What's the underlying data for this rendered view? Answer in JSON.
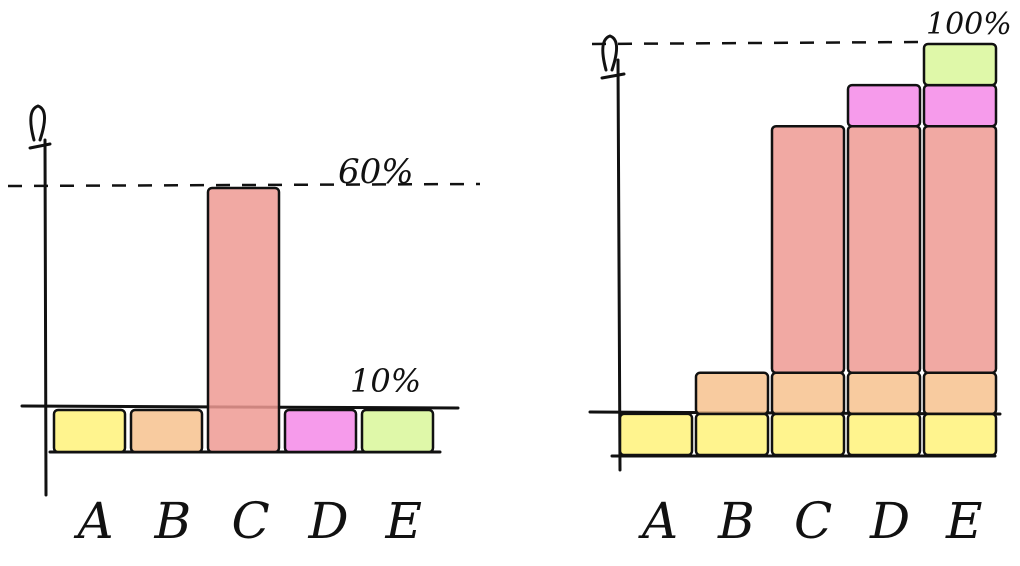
{
  "chart_data": [
    {
      "type": "bar",
      "categories": [
        "A",
        "B",
        "C",
        "D",
        "E"
      ],
      "values": [
        10,
        10,
        60,
        10,
        10
      ],
      "colors": [
        "#fff27a",
        "#f7c28e",
        "#ef9a93",
        "#f58ae8",
        "#d9f79a"
      ],
      "annotations": [
        "60%",
        "10%"
      ],
      "ylim": [
        0,
        60
      ]
    },
    {
      "type": "bar",
      "stacked": true,
      "categories": [
        "A",
        "B",
        "C",
        "D",
        "E"
      ],
      "series": [
        {
          "values": [
            10,
            10,
            10,
            10,
            10
          ],
          "color": "#fff27a"
        },
        {
          "values": [
            0,
            10,
            10,
            10,
            10
          ],
          "color": "#f7c28e"
        },
        {
          "values": [
            0,
            0,
            60,
            60,
            60
          ],
          "color": "#ef9a93"
        },
        {
          "values": [
            0,
            0,
            0,
            10,
            10
          ],
          "color": "#f58ae8"
        },
        {
          "values": [
            0,
            0,
            0,
            0,
            10
          ],
          "color": "#d9f79a"
        }
      ],
      "annotations": [
        "100%"
      ],
      "ylim": [
        0,
        100
      ]
    }
  ]
}
